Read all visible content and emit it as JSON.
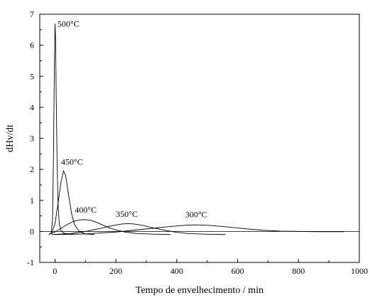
{
  "chart_data": {
    "type": "line",
    "title": "",
    "xlabel": "Tempo de envelhecimento / min",
    "ylabel": "dHv/dt",
    "xlim": [
      -50,
      1000
    ],
    "ylim": [
      -1,
      7
    ],
    "xticks": [
      0,
      200,
      400,
      600,
      800,
      1000
    ],
    "yticks": [
      -1,
      0,
      1,
      2,
      3,
      4,
      5,
      6,
      7
    ],
    "grid": false,
    "legend": "none",
    "series": [
      {
        "name": "500°C",
        "points": [
          [
            -20,
            -0.1
          ],
          [
            -12,
            -0.05
          ],
          [
            -8,
            0.4
          ],
          [
            -5,
            2.4
          ],
          [
            -2,
            5.3
          ],
          [
            0,
            6.7
          ],
          [
            2,
            6.2
          ],
          [
            4,
            4.4
          ],
          [
            7,
            2.2
          ],
          [
            10,
            0.9
          ],
          [
            14,
            0.25
          ],
          [
            20,
            0.02
          ],
          [
            30,
            -0.06
          ],
          [
            45,
            -0.09
          ],
          [
            60,
            -0.1
          ]
        ]
      },
      {
        "name": "450°C",
        "points": [
          [
            -20,
            -0.1
          ],
          [
            -10,
            -0.04
          ],
          [
            0,
            0.25
          ],
          [
            10,
            0.9
          ],
          [
            20,
            1.6
          ],
          [
            28,
            1.95
          ],
          [
            35,
            1.8
          ],
          [
            45,
            1.15
          ],
          [
            55,
            0.55
          ],
          [
            65,
            0.2
          ],
          [
            80,
            0.0
          ],
          [
            100,
            -0.08
          ],
          [
            130,
            -0.1
          ]
        ]
      },
      {
        "name": "400°C",
        "points": [
          [
            -20,
            -0.1
          ],
          [
            0,
            -0.02
          ],
          [
            20,
            0.1
          ],
          [
            40,
            0.22
          ],
          [
            60,
            0.32
          ],
          [
            80,
            0.37
          ],
          [
            100,
            0.38
          ],
          [
            120,
            0.35
          ],
          [
            140,
            0.28
          ],
          [
            160,
            0.19
          ],
          [
            180,
            0.11
          ],
          [
            200,
            0.05
          ],
          [
            230,
            -0.02
          ],
          [
            270,
            -0.07
          ],
          [
            330,
            -0.09
          ],
          [
            380,
            -0.1
          ]
        ]
      },
      {
        "name": "350°C",
        "points": [
          [
            -10,
            -0.1
          ],
          [
            50,
            -0.07
          ],
          [
            100,
            0.0
          ],
          [
            150,
            0.1
          ],
          [
            190,
            0.19
          ],
          [
            220,
            0.24
          ],
          [
            240,
            0.25
          ],
          [
            260,
            0.24
          ],
          [
            290,
            0.19
          ],
          [
            320,
            0.12
          ],
          [
            360,
            0.04
          ],
          [
            400,
            -0.03
          ],
          [
            440,
            -0.07
          ],
          [
            500,
            -0.09
          ],
          [
            560,
            -0.1
          ]
        ]
      },
      {
        "name": "300°C",
        "points": [
          [
            0,
            -0.1
          ],
          [
            100,
            -0.08
          ],
          [
            200,
            -0.02
          ],
          [
            300,
            0.08
          ],
          [
            380,
            0.16
          ],
          [
            430,
            0.2
          ],
          [
            460,
            0.21
          ],
          [
            500,
            0.2
          ],
          [
            560,
            0.15
          ],
          [
            620,
            0.09
          ],
          [
            680,
            0.04
          ],
          [
            740,
            0.01
          ],
          [
            800,
            0.0
          ],
          [
            870,
            -0.01
          ],
          [
            950,
            -0.01
          ]
        ]
      }
    ],
    "annotations": [
      {
        "text": "500°C",
        "x": 8,
        "y": 6.6
      },
      {
        "text": "450°C",
        "x": 20,
        "y": 2.15
      },
      {
        "text": "400°C",
        "x": 65,
        "y": 0.6
      },
      {
        "text": "350°C",
        "x": 200,
        "y": 0.47
      },
      {
        "text": "300°C",
        "x": 428,
        "y": 0.45
      }
    ]
  }
}
